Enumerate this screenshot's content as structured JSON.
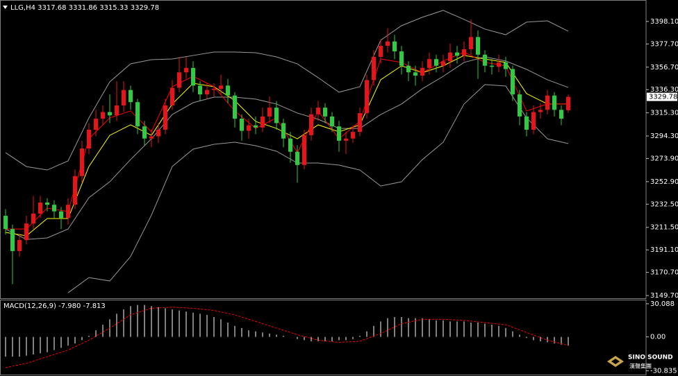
{
  "chart_data": [
    {
      "type": "candlestick",
      "title": "LLG,H4 3317.68 3331.86 3315.33 3329.78",
      "up_color": "#e8141a",
      "down_color": "#2ecc40",
      "open": [
        3222,
        3210,
        3190,
        3200,
        3215,
        3224,
        3234,
        3232,
        3226,
        3220,
        3232,
        3258,
        3283,
        3300,
        3310,
        3316,
        3313,
        3322,
        3336,
        3325,
        3303,
        3292,
        3294,
        3300,
        3322,
        3338,
        3352,
        3356,
        3340,
        3332,
        3336,
        3337,
        3340,
        3331,
        3310,
        3299,
        3304,
        3302,
        3312,
        3320,
        3306,
        3292,
        3280,
        3268,
        3295,
        3314,
        3320,
        3312,
        3303,
        3290,
        3292,
        3298,
        3315,
        3345,
        3366,
        3376,
        3380,
        3371,
        3358,
        3352,
        3349,
        3356,
        3364,
        3358,
        3362,
        3370,
        3367,
        3373,
        3384,
        3368,
        3358,
        3357,
        3361,
        3355,
        3332,
        3312,
        3300,
        3316,
        3318,
        3331,
        3318,
        3317.68
      ],
      "high": [
        3228,
        3214,
        3206,
        3222,
        3240,
        3240,
        3238,
        3236,
        3230,
        3238,
        3264,
        3290,
        3306,
        3318,
        3322,
        3332,
        3344,
        3344,
        3340,
        3328,
        3308,
        3300,
        3306,
        3328,
        3345,
        3366,
        3366,
        3362,
        3344,
        3342,
        3342,
        3350,
        3346,
        3334,
        3314,
        3310,
        3312,
        3320,
        3330,
        3326,
        3310,
        3298,
        3286,
        3300,
        3320,
        3326,
        3324,
        3316,
        3308,
        3298,
        3304,
        3320,
        3350,
        3372,
        3382,
        3392,
        3386,
        3376,
        3362,
        3358,
        3362,
        3370,
        3368,
        3368,
        3378,
        3376,
        3380,
        3400,
        3390,
        3372,
        3364,
        3368,
        3366,
        3358,
        3336,
        3316,
        3322,
        3324,
        3336,
        3334,
        3322,
        3331.86
      ],
      "low": [
        3205,
        3160,
        3185,
        3196,
        3210,
        3220,
        3226,
        3220,
        3210,
        3214,
        3228,
        3252,
        3278,
        3294,
        3304,
        3306,
        3308,
        3316,
        3318,
        3296,
        3286,
        3284,
        3288,
        3296,
        3318,
        3334,
        3346,
        3334,
        3326,
        3328,
        3330,
        3332,
        3324,
        3302,
        3290,
        3292,
        3296,
        3298,
        3306,
        3300,
        3284,
        3270,
        3252,
        3264,
        3290,
        3308,
        3306,
        3298,
        3280,
        3278,
        3288,
        3294,
        3310,
        3340,
        3360,
        3370,
        3364,
        3350,
        3344,
        3340,
        3344,
        3350,
        3352,
        3352,
        3356,
        3360,
        3362,
        3368,
        3346,
        3352,
        3350,
        3352,
        3348,
        3326,
        3304,
        3294,
        3296,
        3310,
        3314,
        3312,
        3304,
        3315.33
      ],
      "close": [
        3210,
        3190,
        3200,
        3215,
        3224,
        3234,
        3232,
        3226,
        3220,
        3232,
        3258,
        3283,
        3300,
        3310,
        3316,
        3313,
        3322,
        3336,
        3325,
        3303,
        3292,
        3294,
        3300,
        3322,
        3338,
        3352,
        3356,
        3340,
        3332,
        3336,
        3337,
        3340,
        3331,
        3310,
        3299,
        3304,
        3302,
        3312,
        3320,
        3306,
        3292,
        3280,
        3268,
        3295,
        3314,
        3320,
        3312,
        3303,
        3290,
        3292,
        3298,
        3315,
        3345,
        3366,
        3376,
        3380,
        3371,
        3358,
        3352,
        3349,
        3356,
        3364,
        3358,
        3362,
        3370,
        3367,
        3373,
        3384,
        3368,
        3358,
        3357,
        3361,
        3355,
        3332,
        3312,
        3300,
        3316,
        3318,
        3331,
        3318,
        3310,
        3329.78
      ],
      "series": [
        {
          "color": "#9a9a9a",
          "x": [
            0,
            3,
            6,
            9,
            12,
            15,
            18,
            21,
            24,
            27,
            30,
            33,
            36,
            39,
            42,
            45,
            48,
            51,
            54,
            57,
            60,
            63,
            66,
            69,
            72,
            75,
            78,
            81
          ],
          "values": [
            3279.2,
            3266.6,
            3263.5,
            3271.7,
            3310.7,
            3343.4,
            3359.7,
            3363.5,
            3364.1,
            3367.3,
            3370.4,
            3370.4,
            3369.8,
            3366.0,
            3359.7,
            3347.2,
            3334.0,
            3339.0,
            3381.1,
            3394.3,
            3401.9,
            3408.2,
            3400.0,
            3391.2,
            3386.1,
            3397.5,
            3398.7,
            3389.3
          ]
        },
        {
          "color": "#9a9a9a",
          "x": [
            0,
            3,
            6,
            9,
            12,
            15,
            18,
            21,
            24,
            27,
            30,
            33,
            36,
            39,
            42,
            45,
            48,
            51,
            54,
            57,
            60,
            63,
            66,
            69,
            72,
            75,
            78,
            81
          ],
          "values": [
            3210.0,
            3200.6,
            3201.9,
            3210.0,
            3238.4,
            3252.8,
            3273.0,
            3291.8,
            3313.8,
            3324.5,
            3329.5,
            3329.5,
            3327.7,
            3323.3,
            3315.1,
            3309.5,
            3301.2,
            3301.2,
            3313.8,
            3323.3,
            3337.1,
            3348.4,
            3361.0,
            3366.0,
            3362.3,
            3354.7,
            3345.3,
            3338.3
          ]
        },
        {
          "color": "#9a9a9a",
          "x": [
            0,
            3,
            6,
            9,
            12,
            15,
            18,
            21,
            24,
            27,
            30,
            33,
            36,
            39,
            42,
            45,
            48,
            51,
            54,
            57,
            60,
            63,
            66,
            69,
            72,
            75,
            78,
            81
          ],
          "values": [
            null,
            null,
            null,
            3152.2,
            3166.0,
            3162.9,
            3185.1,
            3222.6,
            3266.7,
            3282.4,
            3286.8,
            3288.7,
            3285.5,
            3280.5,
            3269.8,
            3269.8,
            3267.9,
            3263.5,
            3249.0,
            3252.8,
            3272.9,
            3288.7,
            3323.3,
            3340.9,
            3339.6,
            3310.7,
            3291.8,
            3287.4
          ]
        },
        {
          "color": "#ffff00",
          "x": [
            0,
            3,
            6,
            9,
            12,
            15,
            18,
            21,
            24,
            27,
            30,
            33,
            36,
            39,
            42,
            45,
            48,
            51,
            54,
            57,
            60,
            63,
            66,
            69,
            72,
            75,
            78,
            81
          ],
          "values": [
            3206.9,
            3203.8,
            3219.5,
            3219.5,
            3266.7,
            3294.9,
            3304.4,
            3294.9,
            3323.3,
            3342.1,
            3339.0,
            3326.4,
            3307.5,
            3301.2,
            3291.8,
            3304.4,
            3298.1,
            3304.4,
            3345.3,
            3357.9,
            3351.6,
            3357.9,
            3367.3,
            3364.1,
            3361.0,
            3332.7,
            3323.3,
            3323.3
          ]
        },
        {
          "color": "#ff0000",
          "x": [
            0,
            3,
            6,
            9,
            12,
            15,
            18,
            21,
            24,
            27,
            30,
            33,
            36,
            39,
            42,
            45,
            48,
            51,
            54,
            57,
            60,
            63,
            66,
            69,
            72,
            75,
            78,
            81
          ],
          "values": [
            3210.0,
            3210.0,
            3228.9,
            3225.8,
            3291.8,
            3310.7,
            3317.0,
            3298.1,
            3339.0,
            3348.4,
            3339.0,
            3317.0,
            3301.2,
            3310.7,
            3279.2,
            3317.0,
            3291.8,
            3307.5,
            3364.1,
            3361.0,
            3351.6,
            3362.3,
            3370.4,
            3361.0,
            3357.9,
            3317.0,
            3323.3,
            3323.3
          ]
        }
      ],
      "ylim": [
        3147.2,
        3416.3
      ],
      "yticks": [
        {
          "value": 3398.1,
          "label": "3398.10"
        },
        {
          "value": 3377.7,
          "label": "3377.70"
        },
        {
          "value": 3356.7,
          "label": "3356.70"
        },
        {
          "value": 3336.3,
          "label": "3336.30"
        },
        {
          "value": 3315.3,
          "label": "3315.30"
        },
        {
          "value": 3294.3,
          "label": "3294.30"
        },
        {
          "value": 3273.9,
          "label": "3273.90"
        },
        {
          "value": 3252.9,
          "label": "3252.90"
        },
        {
          "value": 3232.5,
          "label": "3232.50"
        },
        {
          "value": 3211.5,
          "label": "3211.50"
        },
        {
          "value": 3191.1,
          "label": "3191.10"
        },
        {
          "value": 3170.7,
          "label": "3170.70"
        },
        {
          "value": 3149.7,
          "label": "3149.70"
        }
      ],
      "current_price": {
        "value": 3329.78,
        "label": "3329.78"
      }
    },
    {
      "type": "macd",
      "title": "MACD(12,26,9) -7.980 -7.813",
      "histogram": {
        "color": "#ffffff",
        "values": [
          -18,
          -18,
          -18,
          -17,
          -16,
          -15,
          -14,
          -12,
          -10,
          -8,
          -6,
          -3,
          1,
          6,
          11,
          16,
          21,
          25,
          28,
          29,
          29,
          28,
          27,
          26,
          25,
          24,
          23,
          22,
          21,
          20,
          18,
          16,
          13,
          10,
          8,
          6,
          5,
          4,
          3,
          2,
          1,
          0,
          -2,
          -3,
          -4,
          -4,
          -4,
          -4,
          -3,
          -3,
          -2,
          1,
          5,
          10,
          14,
          17,
          18,
          18,
          17,
          17,
          17,
          16,
          15,
          15,
          14,
          14,
          14,
          13,
          13,
          12,
          11,
          10,
          8,
          5,
          2,
          -1,
          -3,
          -4,
          -5,
          -6,
          -7,
          -7.98
        ]
      },
      "signal": {
        "color": "#ff0000",
        "dashed": true,
        "x": [
          0,
          3,
          6,
          9,
          12,
          15,
          18,
          21,
          24,
          27,
          30,
          33,
          36,
          39,
          42,
          45,
          48,
          51,
          54,
          57,
          60,
          63,
          66,
          69,
          72,
          75,
          78,
          81
        ],
        "values": [
          -28,
          -24,
          -18,
          -12,
          -3,
          8,
          20,
          26,
          27,
          26,
          24,
          20,
          14,
          8,
          2,
          -3,
          -5,
          -4,
          3,
          12,
          16,
          16,
          15,
          13,
          11,
          4,
          -3,
          -7.813
        ]
      },
      "ylim": [
        -34.3,
        33.8
      ],
      "yticks": [
        {
          "value": 30.088,
          "label": "30.088"
        },
        {
          "value": 0,
          "label": "0.00"
        },
        {
          "value": -30.835,
          "label": "-30.835"
        }
      ]
    }
  ],
  "logo": {
    "name": "SINO SOUND",
    "subtitle": "漢聲集團"
  }
}
